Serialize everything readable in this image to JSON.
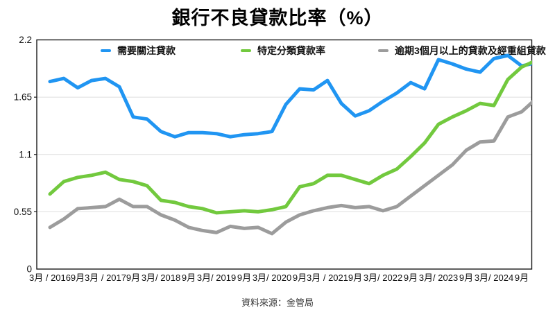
{
  "title": "銀行不良貸款比率（%）",
  "footer": {
    "source": "資料來源：金管局"
  },
  "legend": {
    "items": [
      {
        "label": "需要關注貸款",
        "color": "#2095f2"
      },
      {
        "label": "特定分類貸款率",
        "color": "#72c93e"
      },
      {
        "label": "逾期3個月以上的貸款及經重組貸款",
        "color": "#9c9c9c"
      }
    ]
  },
  "chart_data": {
    "type": "line",
    "title": "銀行不良貸款比率（%）",
    "ylabel": "",
    "xlabel": "",
    "ylim": [
      0,
      2.2
    ],
    "yticks": [
      {
        "label": "0",
        "value": 0
      },
      {
        "label": "0.55",
        "value": 0.55
      },
      {
        "label": "1.1",
        "value": 1.1
      },
      {
        "label": "1.65",
        "value": 1.65
      },
      {
        "label": "2.2",
        "value": 2.2
      }
    ],
    "gridlines": [
      0.55,
      1.1,
      1.65
    ],
    "legend_position": "top",
    "x_frequency": "quarterly",
    "points_per_label": 2,
    "x_labels": [
      "3月 / 2016",
      "9月",
      "3月 / 2017",
      "9月",
      "3月/ 2018",
      "9月",
      "3月/ 2019",
      "9月",
      "3月/ 2020",
      "9月",
      "3月 / 2021",
      "9月",
      "3月/ 2022",
      "9月",
      "3月/ 2023",
      "9月",
      "3月/ 2024",
      "9月"
    ],
    "series": [
      {
        "id": "special-mention-loans",
        "name": "需要關注貸款",
        "color": "#2095f2",
        "values": [
          1.8,
          1.83,
          1.74,
          1.81,
          1.83,
          1.75,
          1.46,
          1.44,
          1.32,
          1.27,
          1.31,
          1.31,
          1.3,
          1.27,
          1.29,
          1.3,
          1.32,
          1.58,
          1.73,
          1.72,
          1.81,
          1.59,
          1.47,
          1.52,
          1.61,
          1.69,
          1.79,
          1.73,
          2.01,
          1.97,
          1.92,
          1.89,
          2.02,
          2.05,
          1.95,
          1.98
        ]
      },
      {
        "id": "classified-loan-ratio",
        "name": "特定分類貸款率",
        "color": "#72c93e",
        "values": [
          0.72,
          0.84,
          0.88,
          0.9,
          0.93,
          0.86,
          0.84,
          0.8,
          0.66,
          0.64,
          0.6,
          0.58,
          0.54,
          0.55,
          0.56,
          0.55,
          0.57,
          0.6,
          0.79,
          0.82,
          0.9,
          0.9,
          0.86,
          0.82,
          0.9,
          0.96,
          1.08,
          1.21,
          1.39,
          1.46,
          1.52,
          1.59,
          1.57,
          1.82,
          1.94,
          2.0
        ]
      },
      {
        "id": "overdue-rescheduled-loans",
        "name": "逾期3個月以上的貸款及經重組貸款",
        "color": "#9c9c9c",
        "values": [
          0.4,
          0.48,
          0.58,
          0.59,
          0.6,
          0.67,
          0.6,
          0.6,
          0.52,
          0.47,
          0.4,
          0.37,
          0.35,
          0.41,
          0.39,
          0.4,
          0.34,
          0.45,
          0.52,
          0.56,
          0.59,
          0.61,
          0.59,
          0.6,
          0.56,
          0.6,
          0.7,
          0.8,
          0.9,
          1.0,
          1.14,
          1.22,
          1.23,
          1.46,
          1.51,
          1.63
        ]
      }
    ]
  }
}
